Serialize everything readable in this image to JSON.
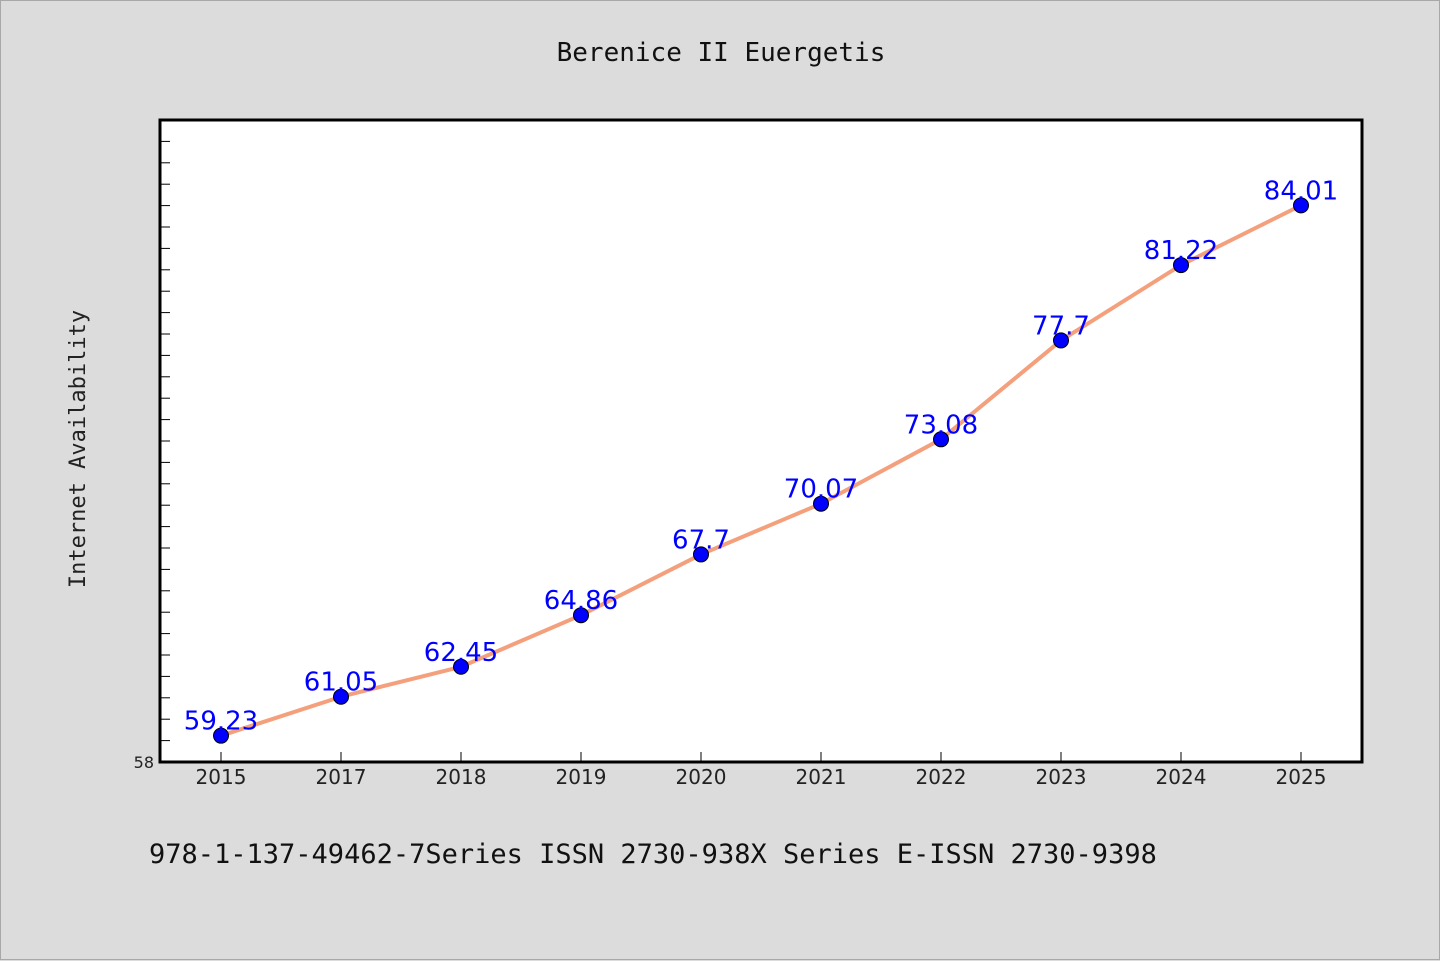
{
  "chart_data": {
    "type": "line",
    "title": "Berenice II Euergetis",
    "xlabel": "",
    "ylabel": "Internet Availability",
    "categories": [
      "2015",
      "2017",
      "2018",
      "2019",
      "2020",
      "2021",
      "2022",
      "2023",
      "2024",
      "2025"
    ],
    "series": [
      {
        "values": [
          59.23,
          61.05,
          62.45,
          64.86,
          67.7,
          70.07,
          73.08,
          77.7,
          81.22,
          84.01
        ],
        "labels": [
          "59.23",
          "61.05",
          "62.45",
          "64.86",
          "67.7",
          "70.07",
          "73.08",
          "77.7",
          "81.22",
          "84.01"
        ]
      }
    ],
    "ylim": [
      58,
      88
    ],
    "y_tick_labels": [
      "58"
    ],
    "grid": false,
    "line_color": "#f4a07c",
    "marker_color": "#0000ff",
    "label_color": "#0000ff"
  },
  "footer": {
    "text": "978-1-137-49462-7Series ISSN 2730-938X Series E-ISSN 2730-9398"
  }
}
